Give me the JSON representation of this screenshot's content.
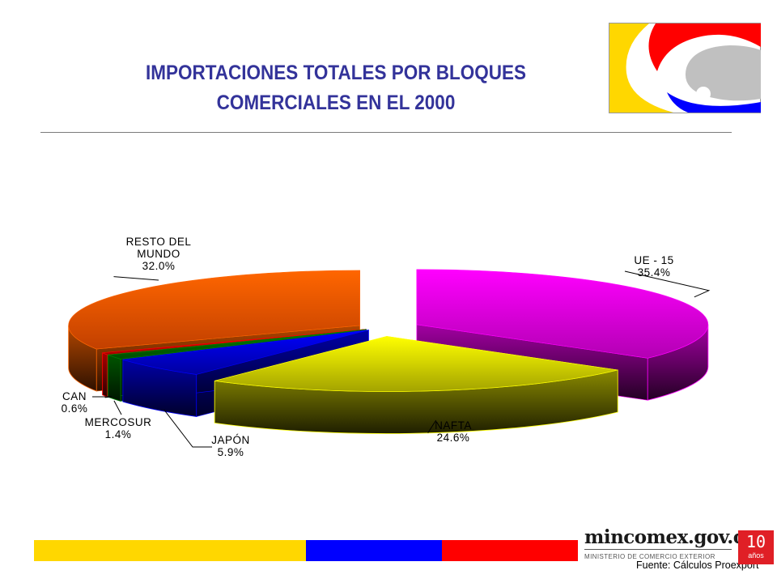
{
  "slide": {
    "title_line1": "IMPORTACIONES TOTALES POR BLOQUES",
    "title_line2": "COMERCIALES EN EL 2000"
  },
  "chart_data": {
    "type": "pie",
    "title": "IMPORTACIONES TOTALES POR BLOQUES COMERCIALES EN EL 2000",
    "three_d": true,
    "exploded": true,
    "categories": [
      "UE - 15",
      "NAFTA",
      "JAPÓN",
      "MERCOSUR",
      "CAN",
      "RESTO DEL MUNDO"
    ],
    "values": [
      35.4,
      24.6,
      5.9,
      1.4,
      0.6,
      32.0
    ],
    "labels": [
      {
        "lines": [
          "UE - 15",
          "35.4%"
        ]
      },
      {
        "lines": [
          "NAFTA",
          "24.6%"
        ]
      },
      {
        "lines": [
          "JAPÓN",
          "5.9%"
        ]
      },
      {
        "lines": [
          "MERCOSUR",
          "1.4%"
        ]
      },
      {
        "lines": [
          "CAN",
          "0.6%"
        ]
      },
      {
        "lines": [
          "RESTO DEL",
          "MUNDO",
          "32.0%"
        ]
      }
    ],
    "colors": [
      "#ff00ff",
      "#ffff00",
      "#0000ff",
      "#008000",
      "#ff0000",
      "#ff6600"
    ]
  },
  "footer": {
    "stripe_colors": [
      "#ffd700",
      "#0000ff",
      "#ff0000"
    ],
    "brand": "mincomex.gov.co",
    "ministry": "MINISTERIO DE COMERCIO EXTERIOR",
    "source": "Fuente: Cálculos Proexport",
    "badge_number": "10",
    "badge_text": "años"
  },
  "logo": {
    "colors": [
      "#ffd700",
      "#ff0000",
      "#0000ff",
      "#c0c0c0"
    ]
  }
}
